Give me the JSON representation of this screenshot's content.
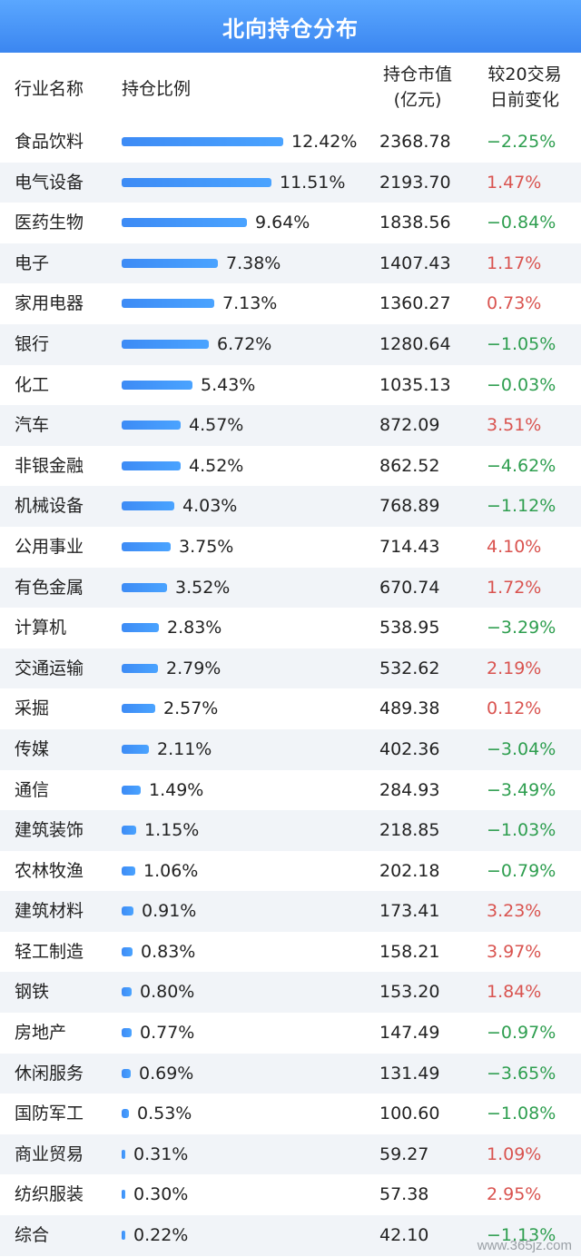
{
  "title": "北向持仓分布",
  "headers": {
    "name": "行业名称",
    "ratio": "持仓比例",
    "value_line1": "持仓市值",
    "value_line2": "(亿元)",
    "change_line1": "较20交易",
    "change_line2": "日前变化"
  },
  "colors": {
    "positive": "#d9534f",
    "negative": "#2e9e4f",
    "bar": "#3d8bf5"
  },
  "rows": [
    {
      "name": "食品饮料",
      "ratio": "12.42%",
      "ratio_value": 12.42,
      "value": "2368.78",
      "change": "−2.25%",
      "direction": "down"
    },
    {
      "name": "电气设备",
      "ratio": "11.51%",
      "ratio_value": 11.51,
      "value": "2193.70",
      "change": "1.47%",
      "direction": "up"
    },
    {
      "name": "医药生物",
      "ratio": "9.64%",
      "ratio_value": 9.64,
      "value": "1838.56",
      "change": "−0.84%",
      "direction": "down"
    },
    {
      "name": "电子",
      "ratio": "7.38%",
      "ratio_value": 7.38,
      "value": "1407.43",
      "change": "1.17%",
      "direction": "up"
    },
    {
      "name": "家用电器",
      "ratio": "7.13%",
      "ratio_value": 7.13,
      "value": "1360.27",
      "change": "0.73%",
      "direction": "up"
    },
    {
      "name": "银行",
      "ratio": "6.72%",
      "ratio_value": 6.72,
      "value": "1280.64",
      "change": "−1.05%",
      "direction": "down"
    },
    {
      "name": "化工",
      "ratio": "5.43%",
      "ratio_value": 5.43,
      "value": "1035.13",
      "change": "−0.03%",
      "direction": "down"
    },
    {
      "name": "汽车",
      "ratio": "4.57%",
      "ratio_value": 4.57,
      "value": "872.09",
      "change": "3.51%",
      "direction": "up"
    },
    {
      "name": "非银金融",
      "ratio": "4.52%",
      "ratio_value": 4.52,
      "value": "862.52",
      "change": "−4.62%",
      "direction": "down"
    },
    {
      "name": "机械设备",
      "ratio": "4.03%",
      "ratio_value": 4.03,
      "value": "768.89",
      "change": "−1.12%",
      "direction": "down"
    },
    {
      "name": "公用事业",
      "ratio": "3.75%",
      "ratio_value": 3.75,
      "value": "714.43",
      "change": "4.10%",
      "direction": "up"
    },
    {
      "name": "有色金属",
      "ratio": "3.52%",
      "ratio_value": 3.52,
      "value": "670.74",
      "change": "1.72%",
      "direction": "up"
    },
    {
      "name": "计算机",
      "ratio": "2.83%",
      "ratio_value": 2.83,
      "value": "538.95",
      "change": "−3.29%",
      "direction": "down"
    },
    {
      "name": "交通运输",
      "ratio": "2.79%",
      "ratio_value": 2.79,
      "value": "532.62",
      "change": "2.19%",
      "direction": "up"
    },
    {
      "name": "采掘",
      "ratio": "2.57%",
      "ratio_value": 2.57,
      "value": "489.38",
      "change": "0.12%",
      "direction": "up"
    },
    {
      "name": "传媒",
      "ratio": "2.11%",
      "ratio_value": 2.11,
      "value": "402.36",
      "change": "−3.04%",
      "direction": "down"
    },
    {
      "name": "通信",
      "ratio": "1.49%",
      "ratio_value": 1.49,
      "value": "284.93",
      "change": "−3.49%",
      "direction": "down"
    },
    {
      "name": "建筑装饰",
      "ratio": "1.15%",
      "ratio_value": 1.15,
      "value": "218.85",
      "change": "−1.03%",
      "direction": "down"
    },
    {
      "name": "农林牧渔",
      "ratio": "1.06%",
      "ratio_value": 1.06,
      "value": "202.18",
      "change": "−0.79%",
      "direction": "down"
    },
    {
      "name": "建筑材料",
      "ratio": "0.91%",
      "ratio_value": 0.91,
      "value": "173.41",
      "change": "3.23%",
      "direction": "up"
    },
    {
      "name": "轻工制造",
      "ratio": "0.83%",
      "ratio_value": 0.83,
      "value": "158.21",
      "change": "3.97%",
      "direction": "up"
    },
    {
      "name": "钢铁",
      "ratio": "0.80%",
      "ratio_value": 0.8,
      "value": "153.20",
      "change": "1.84%",
      "direction": "up"
    },
    {
      "name": "房地产",
      "ratio": "0.77%",
      "ratio_value": 0.77,
      "value": "147.49",
      "change": "−0.97%",
      "direction": "down"
    },
    {
      "name": "休闲服务",
      "ratio": "0.69%",
      "ratio_value": 0.69,
      "value": "131.49",
      "change": "−3.65%",
      "direction": "down"
    },
    {
      "name": "国防军工",
      "ratio": "0.53%",
      "ratio_value": 0.53,
      "value": "100.60",
      "change": "−1.08%",
      "direction": "down"
    },
    {
      "name": "商业贸易",
      "ratio": "0.31%",
      "ratio_value": 0.31,
      "value": "59.27",
      "change": "1.09%",
      "direction": "up"
    },
    {
      "name": "纺织服装",
      "ratio": "0.30%",
      "ratio_value": 0.3,
      "value": "57.38",
      "change": "2.95%",
      "direction": "up"
    },
    {
      "name": "综合",
      "ratio": "0.22%",
      "ratio_value": 0.22,
      "value": "42.10",
      "change": "−1.13%",
      "direction": "down"
    }
  ],
  "watermark": "www.365jz.com"
}
